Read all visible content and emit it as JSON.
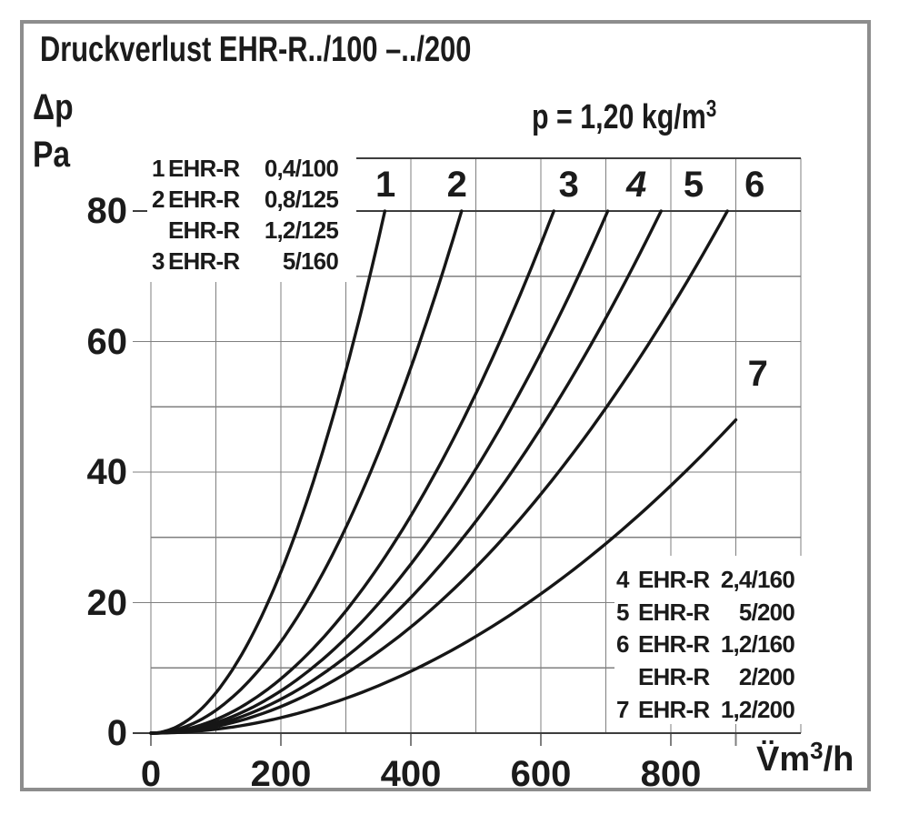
{
  "title": "Druckverlust EHR-R../100 –../200",
  "density_label": {
    "text": "p = 1,20 kg/m",
    "sup": "3"
  },
  "y_axis": {
    "quantity": "Δp",
    "unit": "Pa",
    "tick_values": [
      80,
      60,
      40,
      20,
      0
    ]
  },
  "x_axis": {
    "tick_values": [
      0,
      200,
      400,
      600,
      800
    ],
    "unit": {
      "base": "V̈m",
      "sup": "3",
      "suffix": "/h"
    }
  },
  "legend_left": {
    "rows": [
      {
        "num": "1",
        "model": "EHR-R",
        "size": "0,4/100"
      },
      {
        "num": "2",
        "model": "EHR-R",
        "size": "0,8/125"
      },
      {
        "num": "",
        "model": "EHR-R",
        "size": "1,2/125"
      },
      {
        "num": "3",
        "model": "EHR-R",
        "size": "5/160"
      }
    ]
  },
  "legend_right": {
    "rows": [
      {
        "num": "4",
        "model": "EHR-R",
        "size": "2,4/160"
      },
      {
        "num": "5",
        "model": "EHR-R",
        "size": "5/200"
      },
      {
        "num": "6",
        "model": "EHR-R",
        "size": "1,2/160"
      },
      {
        "num": "",
        "model": "EHR-R",
        "size": "2/200"
      },
      {
        "num": "7",
        "model": "EHR-R",
        "size": "1,2/200"
      }
    ]
  },
  "chart_data": {
    "type": "line",
    "title": "Druckverlust EHR-R../100 –../200",
    "xlabel": "V (m3/h)",
    "ylabel": "Δp (Pa)",
    "xlim": [
      0,
      1000
    ],
    "ylim": [
      0,
      80
    ],
    "x_grid_step": 100,
    "y_grid_step": 10,
    "grid": true,
    "header_band": true,
    "air_density": "p = 1,20 kg/m3",
    "curve_model": "dp = dp_end * (V / v_end)^2",
    "series": [
      {
        "label": "1",
        "products": [
          "EHR-R 0,4/100"
        ],
        "v_end": 360,
        "dp_end": 80
      },
      {
        "label": "2",
        "products": [
          "EHR-R 0,8/125",
          "EHR-R 1,2/125"
        ],
        "v_end": 478,
        "dp_end": 80
      },
      {
        "label": "3",
        "products": [
          "EHR-R 5/160"
        ],
        "v_end": 620,
        "dp_end": 80
      },
      {
        "label": "4",
        "products": [
          "EHR-R 2,4/160"
        ],
        "v_end": 703,
        "dp_end": 80
      },
      {
        "label": "5",
        "products": [
          "EHR-R 5/200"
        ],
        "v_end": 785,
        "dp_end": 80
      },
      {
        "label": "6",
        "products": [
          "EHR-R 1,2/160",
          "EHR-R 2/200"
        ],
        "v_end": 887,
        "dp_end": 80
      },
      {
        "label": "7",
        "products": [
          "EHR-R 1,2/200"
        ],
        "v_end": 900,
        "dp_end": 48
      }
    ],
    "curve_labels": [
      {
        "label": "1",
        "v": 361,
        "band": true
      },
      {
        "label": "2",
        "v": 471,
        "band": true
      },
      {
        "label": "3",
        "v": 643,
        "band": true
      },
      {
        "label": "4",
        "v": 747,
        "band": true,
        "italic": true
      },
      {
        "label": "5",
        "v": 835,
        "band": true
      },
      {
        "label": "6",
        "v": 929,
        "band": true
      },
      {
        "label": "7",
        "v": 934,
        "dp": 55,
        "band": false
      }
    ],
    "x_tick_stub_values": [
      0,
      200,
      400,
      600,
      800,
      900
    ]
  },
  "colors": {
    "curve": "#161616",
    "grid_minor": "#7f7f7f",
    "grid_major": "#3d3d3d",
    "frame": "#8d8d8d",
    "text": "#1b1b1b",
    "background": "#ffffff"
  }
}
